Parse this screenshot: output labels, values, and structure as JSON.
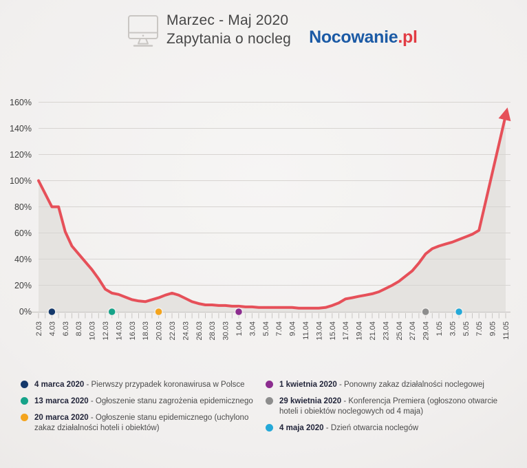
{
  "header": {
    "title_line1": "Marzec - Maj 2020",
    "title_line2": "Zapytania o nocleg",
    "logo": {
      "name": "Nocowanie",
      "tld": ".pl",
      "name_color": "#1b5aa5",
      "tld_color": "#e23c44"
    }
  },
  "chart_data": {
    "type": "line",
    "title": "Marzec - Maj 2020 - Zapytania o nocleg",
    "xlabel": "",
    "ylabel": "",
    "ylim": [
      0,
      165
    ],
    "y_ticks": [
      "0%",
      "20%",
      "40%",
      "60%",
      "80%",
      "100%",
      "120%",
      "140%",
      "160%"
    ],
    "x_label_every": 2,
    "grid": true,
    "arrow_end": true,
    "line_color": "#e65059",
    "area_color": "#e5e3e0",
    "grid_color": "#d7d4d1",
    "axis_color": "#c8c5c2",
    "x": [
      "2.03",
      "3.03",
      "4.03",
      "5.03",
      "6.03",
      "7.03",
      "8.03",
      "9.03",
      "10.03",
      "11.03",
      "12.03",
      "13.03",
      "14.03",
      "15.03",
      "16.03",
      "17.03",
      "18.03",
      "19.03",
      "20.03",
      "21.03",
      "22.03",
      "23.03",
      "24.03",
      "25.03",
      "26.03",
      "27.03",
      "28.03",
      "29.03",
      "30.03",
      "31.03",
      "1.04",
      "2.04",
      "3.04",
      "4.04",
      "5.04",
      "6.04",
      "7.04",
      "8.04",
      "9.04",
      "10.04",
      "11.04",
      "12.04",
      "13.04",
      "14.04",
      "15.04",
      "16.04",
      "17.04",
      "18.04",
      "19.04",
      "20.04",
      "21.04",
      "22.04",
      "23.04",
      "24.04",
      "25.04",
      "26.04",
      "27.04",
      "28.04",
      "29.04",
      "30.04",
      "1.05",
      "2.05",
      "3.05",
      "4.05",
      "5.05",
      "6.05",
      "7.05",
      "8.05",
      "9.05",
      "10.05",
      "11.05"
    ],
    "values": [
      100,
      90,
      80,
      80,
      61,
      50,
      44,
      38,
      32,
      25,
      17,
      14,
      13,
      11,
      9,
      8,
      7.5,
      9,
      10.5,
      12.5,
      14,
      12.5,
      10,
      7.5,
      6,
      5,
      5,
      4.5,
      4.5,
      4,
      4,
      3.5,
      3.5,
      3,
      3,
      3,
      3,
      3,
      3,
      2.5,
      2.5,
      2.5,
      2.5,
      3,
      4.5,
      6.5,
      9.5,
      10.5,
      11.5,
      12.5,
      13.5,
      15,
      17.5,
      20,
      23,
      27,
      31,
      37,
      44,
      48,
      50,
      51.5,
      53,
      55,
      57,
      59,
      62,
      84,
      106,
      128,
      150
    ],
    "events": [
      {
        "date": "4.03",
        "color": "#14386b"
      },
      {
        "date": "13.03",
        "color": "#16a389"
      },
      {
        "date": "20.03",
        "color": "#f4a41d"
      },
      {
        "date": "1.04",
        "color": "#8c2d8f"
      },
      {
        "date": "29.04",
        "color": "#8d8d8d"
      },
      {
        "date": "4.05",
        "color": "#25a9d8"
      }
    ]
  },
  "legend": {
    "left": [
      {
        "color": "#14386b",
        "date": "4 marca 2020",
        "desc": "- Pierwszy przypadek koronawirusa w Polsce"
      },
      {
        "color": "#16a389",
        "date": "13 marca 2020",
        "desc": "- Ogłoszenie stanu zagrożenia epidemicznego"
      },
      {
        "color": "#f4a41d",
        "date": "20 marca 2020",
        "desc": "- Ogłoszenie stanu epidemicznego (uchylono zakaz działalności hoteli i obiektów)"
      }
    ],
    "right": [
      {
        "color": "#8c2d8f",
        "date": "1 kwietnia 2020",
        "desc": "- Ponowny zakaz działalności noclegowej"
      },
      {
        "color": "#8d8d8d",
        "date": "29 kwietnia 2020",
        "desc": "- Konferencja Premiera (ogłoszono otwarcie hoteli i obiektów noclegowych od 4 maja)"
      },
      {
        "color": "#25a9d8",
        "date": "4 maja 2020",
        "desc": "- Dzień otwarcia noclegów"
      }
    ]
  }
}
